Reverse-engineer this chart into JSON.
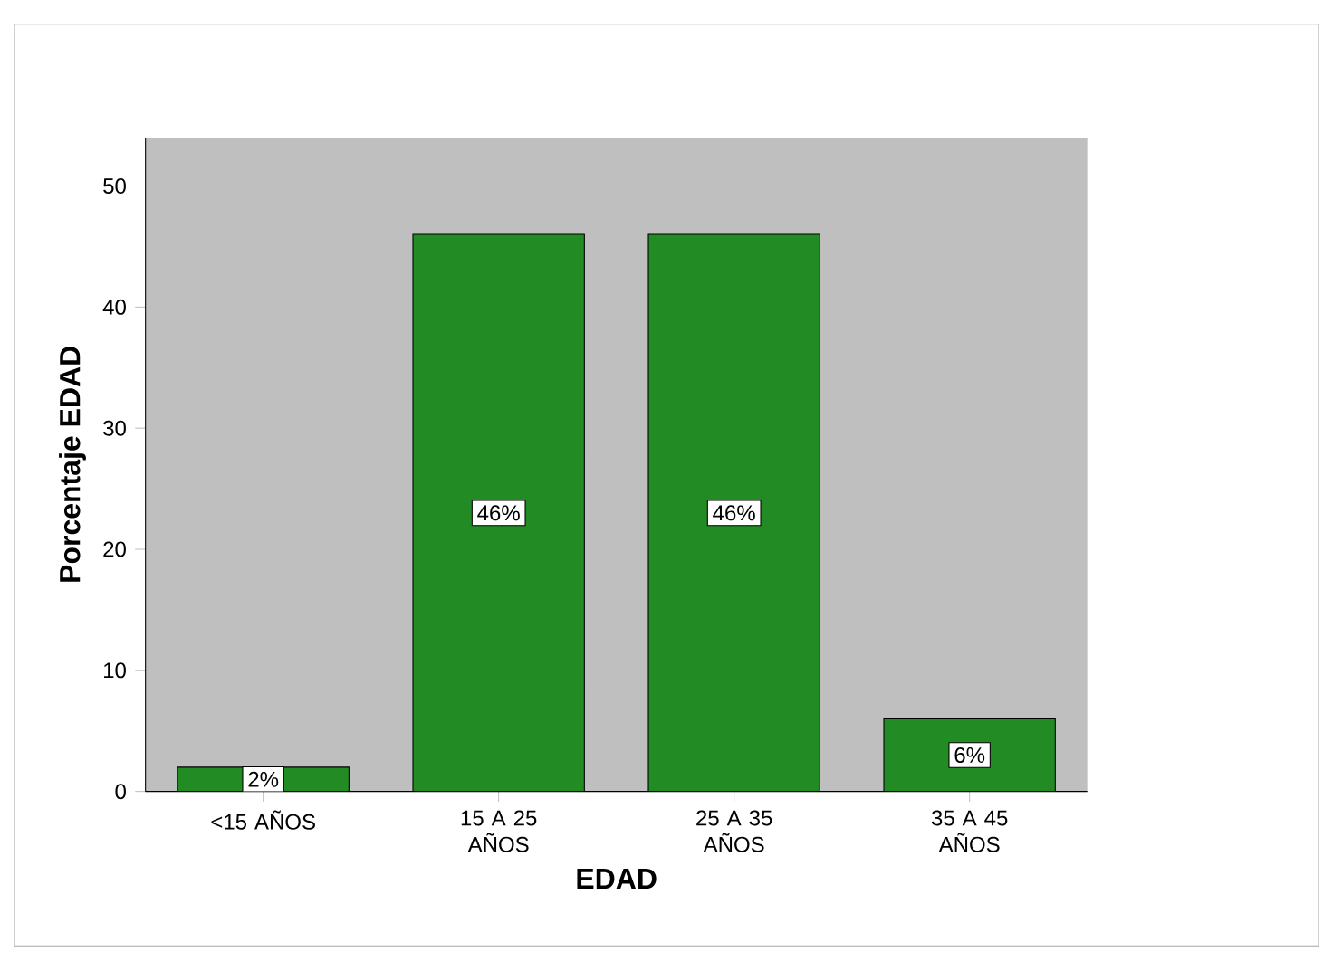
{
  "chart_data": {
    "type": "bar",
    "xlabel": "EDAD",
    "ylabel": "Porcentaje EDAD",
    "categories": [
      "<15 AÑOS",
      "15 A 25 AÑOS",
      "25 A 35 AÑOS",
      "35 A 45 AÑOS"
    ],
    "values": [
      2,
      46,
      46,
      6
    ],
    "value_labels": [
      "2%",
      "46%",
      "46%",
      "6%"
    ],
    "color": "#238b23",
    "ylim": [
      0,
      54
    ],
    "yticks": [
      0,
      10,
      20,
      30,
      40,
      50
    ]
  }
}
